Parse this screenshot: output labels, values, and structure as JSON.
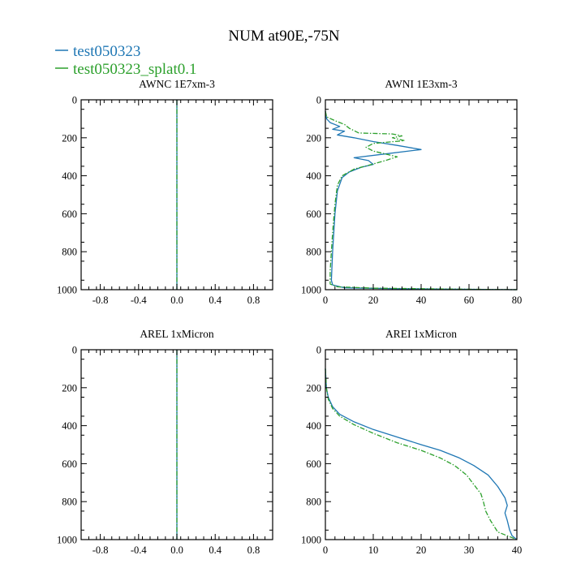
{
  "figure": {
    "title": "NUM at90E,-75N",
    "legend": [
      {
        "name": "test050323",
        "color": "#1f77b4",
        "dash": "solid"
      },
      {
        "name": "test050323_splat0.1",
        "color": "#2ca02c",
        "dash": "dashdot"
      }
    ]
  },
  "chart_data": [
    {
      "type": "line",
      "title": "AWNC  1E7xm-3",
      "xlim": [
        -1,
        1
      ],
      "ylim": [
        1000,
        0
      ],
      "xticks": [
        -0.8,
        -0.4,
        0.0,
        0.4,
        0.8
      ],
      "xticklabels": [
        "-0.8",
        "-0.4",
        "0.0",
        "0.4",
        "0.8"
      ],
      "yticks": [
        0,
        200,
        400,
        600,
        800,
        1000
      ],
      "yticklabels": [
        "0",
        "200",
        "400",
        "600",
        "800",
        "1000"
      ],
      "series": [
        {
          "name": "test050323",
          "points": [
            [
              0,
              0
            ],
            [
              0,
              1000
            ]
          ]
        },
        {
          "name": "test050323_splat0.1",
          "points": [
            [
              0,
              0
            ],
            [
              0,
              1000
            ]
          ]
        }
      ]
    },
    {
      "type": "line",
      "title": "AWNI  1E3xm-3",
      "xlim": [
        0,
        80
      ],
      "ylim": [
        1000,
        0
      ],
      "xticks": [
        0,
        20,
        40,
        60,
        80
      ],
      "xticklabels": [
        "0",
        "20",
        "40",
        "60",
        "80"
      ],
      "yticks": [
        0,
        200,
        400,
        600,
        800,
        1000
      ],
      "yticklabels": [
        "0",
        "200",
        "400",
        "600",
        "800",
        "1000"
      ],
      "series": [
        {
          "name": "test050323",
          "points": [
            [
              0,
              60
            ],
            [
              0.5,
              100
            ],
            [
              2,
              120
            ],
            [
              6,
              140
            ],
            [
              3,
              155
            ],
            [
              8,
              165
            ],
            [
              5,
              185
            ],
            [
              12,
              200
            ],
            [
              20,
              220
            ],
            [
              30,
              240
            ],
            [
              40,
              262
            ],
            [
              25,
              285
            ],
            [
              12,
              305
            ],
            [
              18,
              320
            ],
            [
              20,
              340
            ],
            [
              15,
              355
            ],
            [
              10,
              380
            ],
            [
              7,
              410
            ],
            [
              5,
              480
            ],
            [
              4,
              600
            ],
            [
              3,
              800
            ],
            [
              2.5,
              950
            ],
            [
              3,
              975
            ],
            [
              8,
              990
            ],
            [
              30,
              995
            ],
            [
              60,
              998
            ],
            [
              80,
              1000
            ]
          ]
        },
        {
          "name": "test050323_splat0.1",
          "points": [
            [
              0,
              60
            ],
            [
              0.5,
              90
            ],
            [
              4,
              110
            ],
            [
              8,
              130
            ],
            [
              10,
              150
            ],
            [
              14,
              175
            ],
            [
              28,
              180
            ],
            [
              32,
              190
            ],
            [
              28,
              200
            ],
            [
              33,
              215
            ],
            [
              20,
              230
            ],
            [
              17,
              250
            ],
            [
              20,
              270
            ],
            [
              25,
              285
            ],
            [
              30,
              300
            ],
            [
              25,
              320
            ],
            [
              18,
              345
            ],
            [
              12,
              365
            ],
            [
              7,
              400
            ],
            [
              5,
              450
            ],
            [
              4,
              550
            ],
            [
              3,
              700
            ],
            [
              2,
              900
            ],
            [
              2,
              970
            ],
            [
              5,
              985
            ],
            [
              20,
              992
            ],
            [
              55,
              997
            ],
            [
              80,
              1000
            ]
          ]
        }
      ]
    },
    {
      "type": "line",
      "title": "AREL  1xMicron",
      "xlim": [
        -1,
        1
      ],
      "ylim": [
        1000,
        0
      ],
      "xticks": [
        -0.8,
        -0.4,
        0.0,
        0.4,
        0.8
      ],
      "xticklabels": [
        "-0.8",
        "-0.4",
        "0.0",
        "0.4",
        "0.8"
      ],
      "yticks": [
        0,
        200,
        400,
        600,
        800,
        1000
      ],
      "yticklabels": [
        "0",
        "200",
        "400",
        "600",
        "800",
        "1000"
      ],
      "series": [
        {
          "name": "test050323",
          "points": [
            [
              0,
              0
            ],
            [
              0,
              1000
            ]
          ]
        },
        {
          "name": "test050323_splat0.1",
          "points": [
            [
              0,
              0
            ],
            [
              0,
              1000
            ]
          ]
        }
      ]
    },
    {
      "type": "line",
      "title": "AREI  1xMicron",
      "xlim": [
        0,
        40
      ],
      "ylim": [
        1000,
        0
      ],
      "xticks": [
        0,
        10,
        20,
        30,
        40
      ],
      "xticklabels": [
        "0",
        "10",
        "20",
        "30",
        "40"
      ],
      "yticks": [
        0,
        200,
        400,
        600,
        800,
        1000
      ],
      "yticklabels": [
        "0",
        "200",
        "400",
        "600",
        "800",
        "1000"
      ],
      "series": [
        {
          "name": "test050323",
          "points": [
            [
              0,
              100
            ],
            [
              0.2,
              200
            ],
            [
              0.6,
              250
            ],
            [
              1.5,
              300
            ],
            [
              3,
              340
            ],
            [
              6,
              380
            ],
            [
              10,
              420
            ],
            [
              15,
              460
            ],
            [
              20,
              500
            ],
            [
              24,
              530
            ],
            [
              28,
              570
            ],
            [
              31,
              610
            ],
            [
              34,
              660
            ],
            [
              36,
              720
            ],
            [
              37.5,
              780
            ],
            [
              38,
              820
            ],
            [
              37.5,
              860
            ],
            [
              38,
              900
            ],
            [
              38.5,
              950
            ],
            [
              39,
              980
            ],
            [
              40,
              1000
            ]
          ]
        },
        {
          "name": "test050323_splat0.1",
          "points": [
            [
              0,
              100
            ],
            [
              0.2,
              200
            ],
            [
              0.6,
              260
            ],
            [
              1.5,
              310
            ],
            [
              3,
              350
            ],
            [
              6,
              395
            ],
            [
              10,
              440
            ],
            [
              15,
              490
            ],
            [
              20,
              530
            ],
            [
              24,
              570
            ],
            [
              27,
              610
            ],
            [
              29.5,
              660
            ],
            [
              31,
              710
            ],
            [
              32.5,
              760
            ],
            [
              33,
              800
            ],
            [
              33.5,
              850
            ],
            [
              34.5,
              900
            ],
            [
              35.5,
              940
            ],
            [
              36,
              960
            ],
            [
              38,
              980
            ],
            [
              40,
              1000
            ]
          ]
        }
      ]
    }
  ]
}
